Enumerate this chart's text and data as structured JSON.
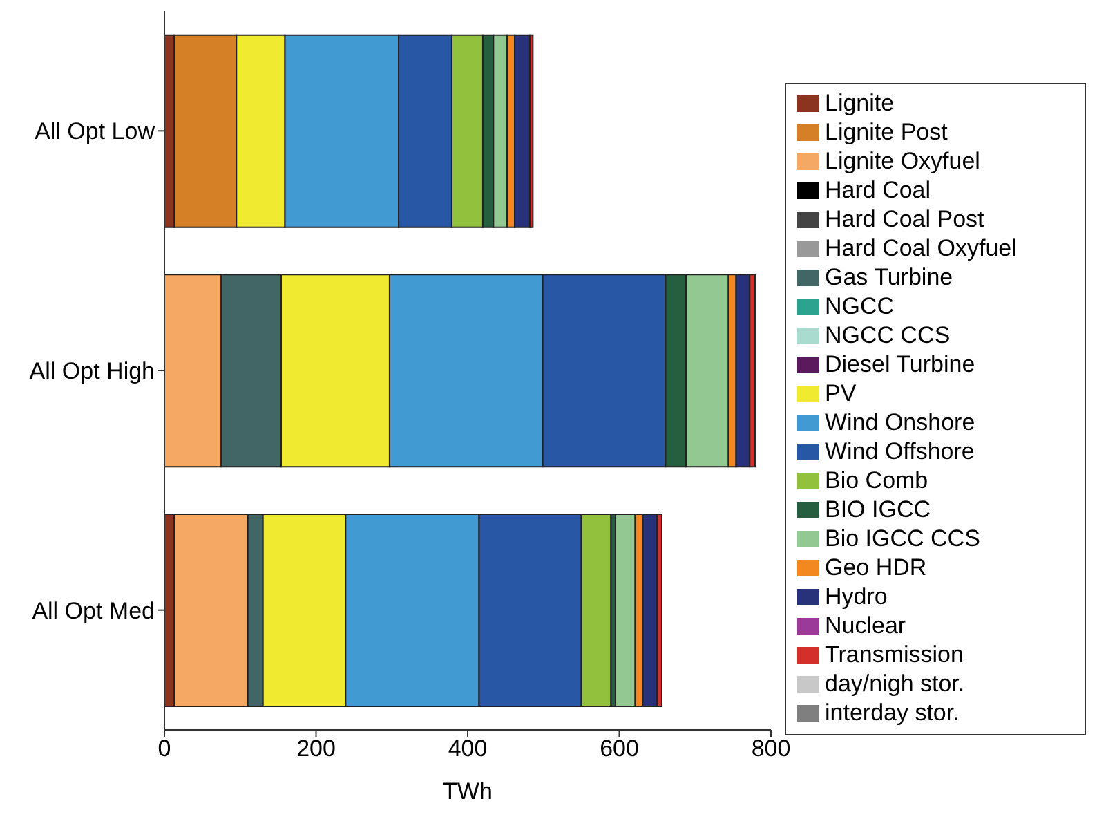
{
  "chart_data": {
    "type": "bar",
    "orientation": "horizontal",
    "stacked": true,
    "xlabel": "TWh",
    "categories": [
      "All Opt Low",
      "All Opt High",
      "All Opt Med"
    ],
    "xlim": [
      0,
      800
    ],
    "xticks": [
      0,
      200,
      400,
      600,
      800
    ],
    "legend": "right",
    "series": [
      {
        "name": "Lignite",
        "color": "#8b3520",
        "values": [
          13,
          0,
          13
        ]
      },
      {
        "name": "Lignite Post",
        "color": "#d57f27",
        "values": [
          82,
          0,
          0
        ]
      },
      {
        "name": "Lignite Oxyfuel",
        "color": "#f5a864",
        "values": [
          0,
          75,
          97
        ]
      },
      {
        "name": "Hard Coal",
        "color": "#000000",
        "values": [
          0,
          0,
          0
        ]
      },
      {
        "name": "Hard Coal Post",
        "color": "#444444",
        "values": [
          0,
          0,
          0
        ]
      },
      {
        "name": "Hard Coal Oxyfuel",
        "color": "#999999",
        "values": [
          0,
          0,
          0
        ]
      },
      {
        "name": "Gas Turbine",
        "color": "#426565",
        "values": [
          0,
          79,
          20
        ]
      },
      {
        "name": "NGCC",
        "color": "#2ba38e",
        "values": [
          0,
          0,
          0
        ]
      },
      {
        "name": "NGCC CCS",
        "color": "#aadbcf",
        "values": [
          0,
          0,
          0
        ]
      },
      {
        "name": "Diesel Turbine",
        "color": "#5b1a5b",
        "values": [
          0,
          0,
          0
        ]
      },
      {
        "name": "PV",
        "color": "#f0ea31",
        "values": [
          64,
          143,
          109
        ]
      },
      {
        "name": "Wind Onshore",
        "color": "#429ad3",
        "values": [
          150,
          202,
          176
        ]
      },
      {
        "name": "Wind Offshore",
        "color": "#2757a5",
        "values": [
          70,
          162,
          135
        ]
      },
      {
        "name": "Bio Comb",
        "color": "#92c13e",
        "values": [
          41,
          0,
          39
        ]
      },
      {
        "name": "BIO IGCC",
        "color": "#265e40",
        "values": [
          14,
          27,
          6
        ]
      },
      {
        "name": "Bio IGCC CCS",
        "color": "#93c893",
        "values": [
          18,
          56,
          26
        ]
      },
      {
        "name": "Geo HDR",
        "color": "#f2881f",
        "values": [
          10,
          10,
          10
        ]
      },
      {
        "name": "Hydro",
        "color": "#27327a",
        "values": [
          20,
          18,
          19
        ]
      },
      {
        "name": "Nuclear",
        "color": "#9b3a99",
        "values": [
          0,
          0,
          0
        ]
      },
      {
        "name": "Transmission",
        "color": "#d3302b",
        "values": [
          4,
          7,
          6
        ]
      },
      {
        "name": "day/nigh stor.",
        "color": "#c8c8c8",
        "values": [
          0,
          0,
          0
        ]
      },
      {
        "name": "interday stor.",
        "color": "#7f7f7f",
        "values": [
          0,
          0,
          0
        ]
      }
    ]
  }
}
